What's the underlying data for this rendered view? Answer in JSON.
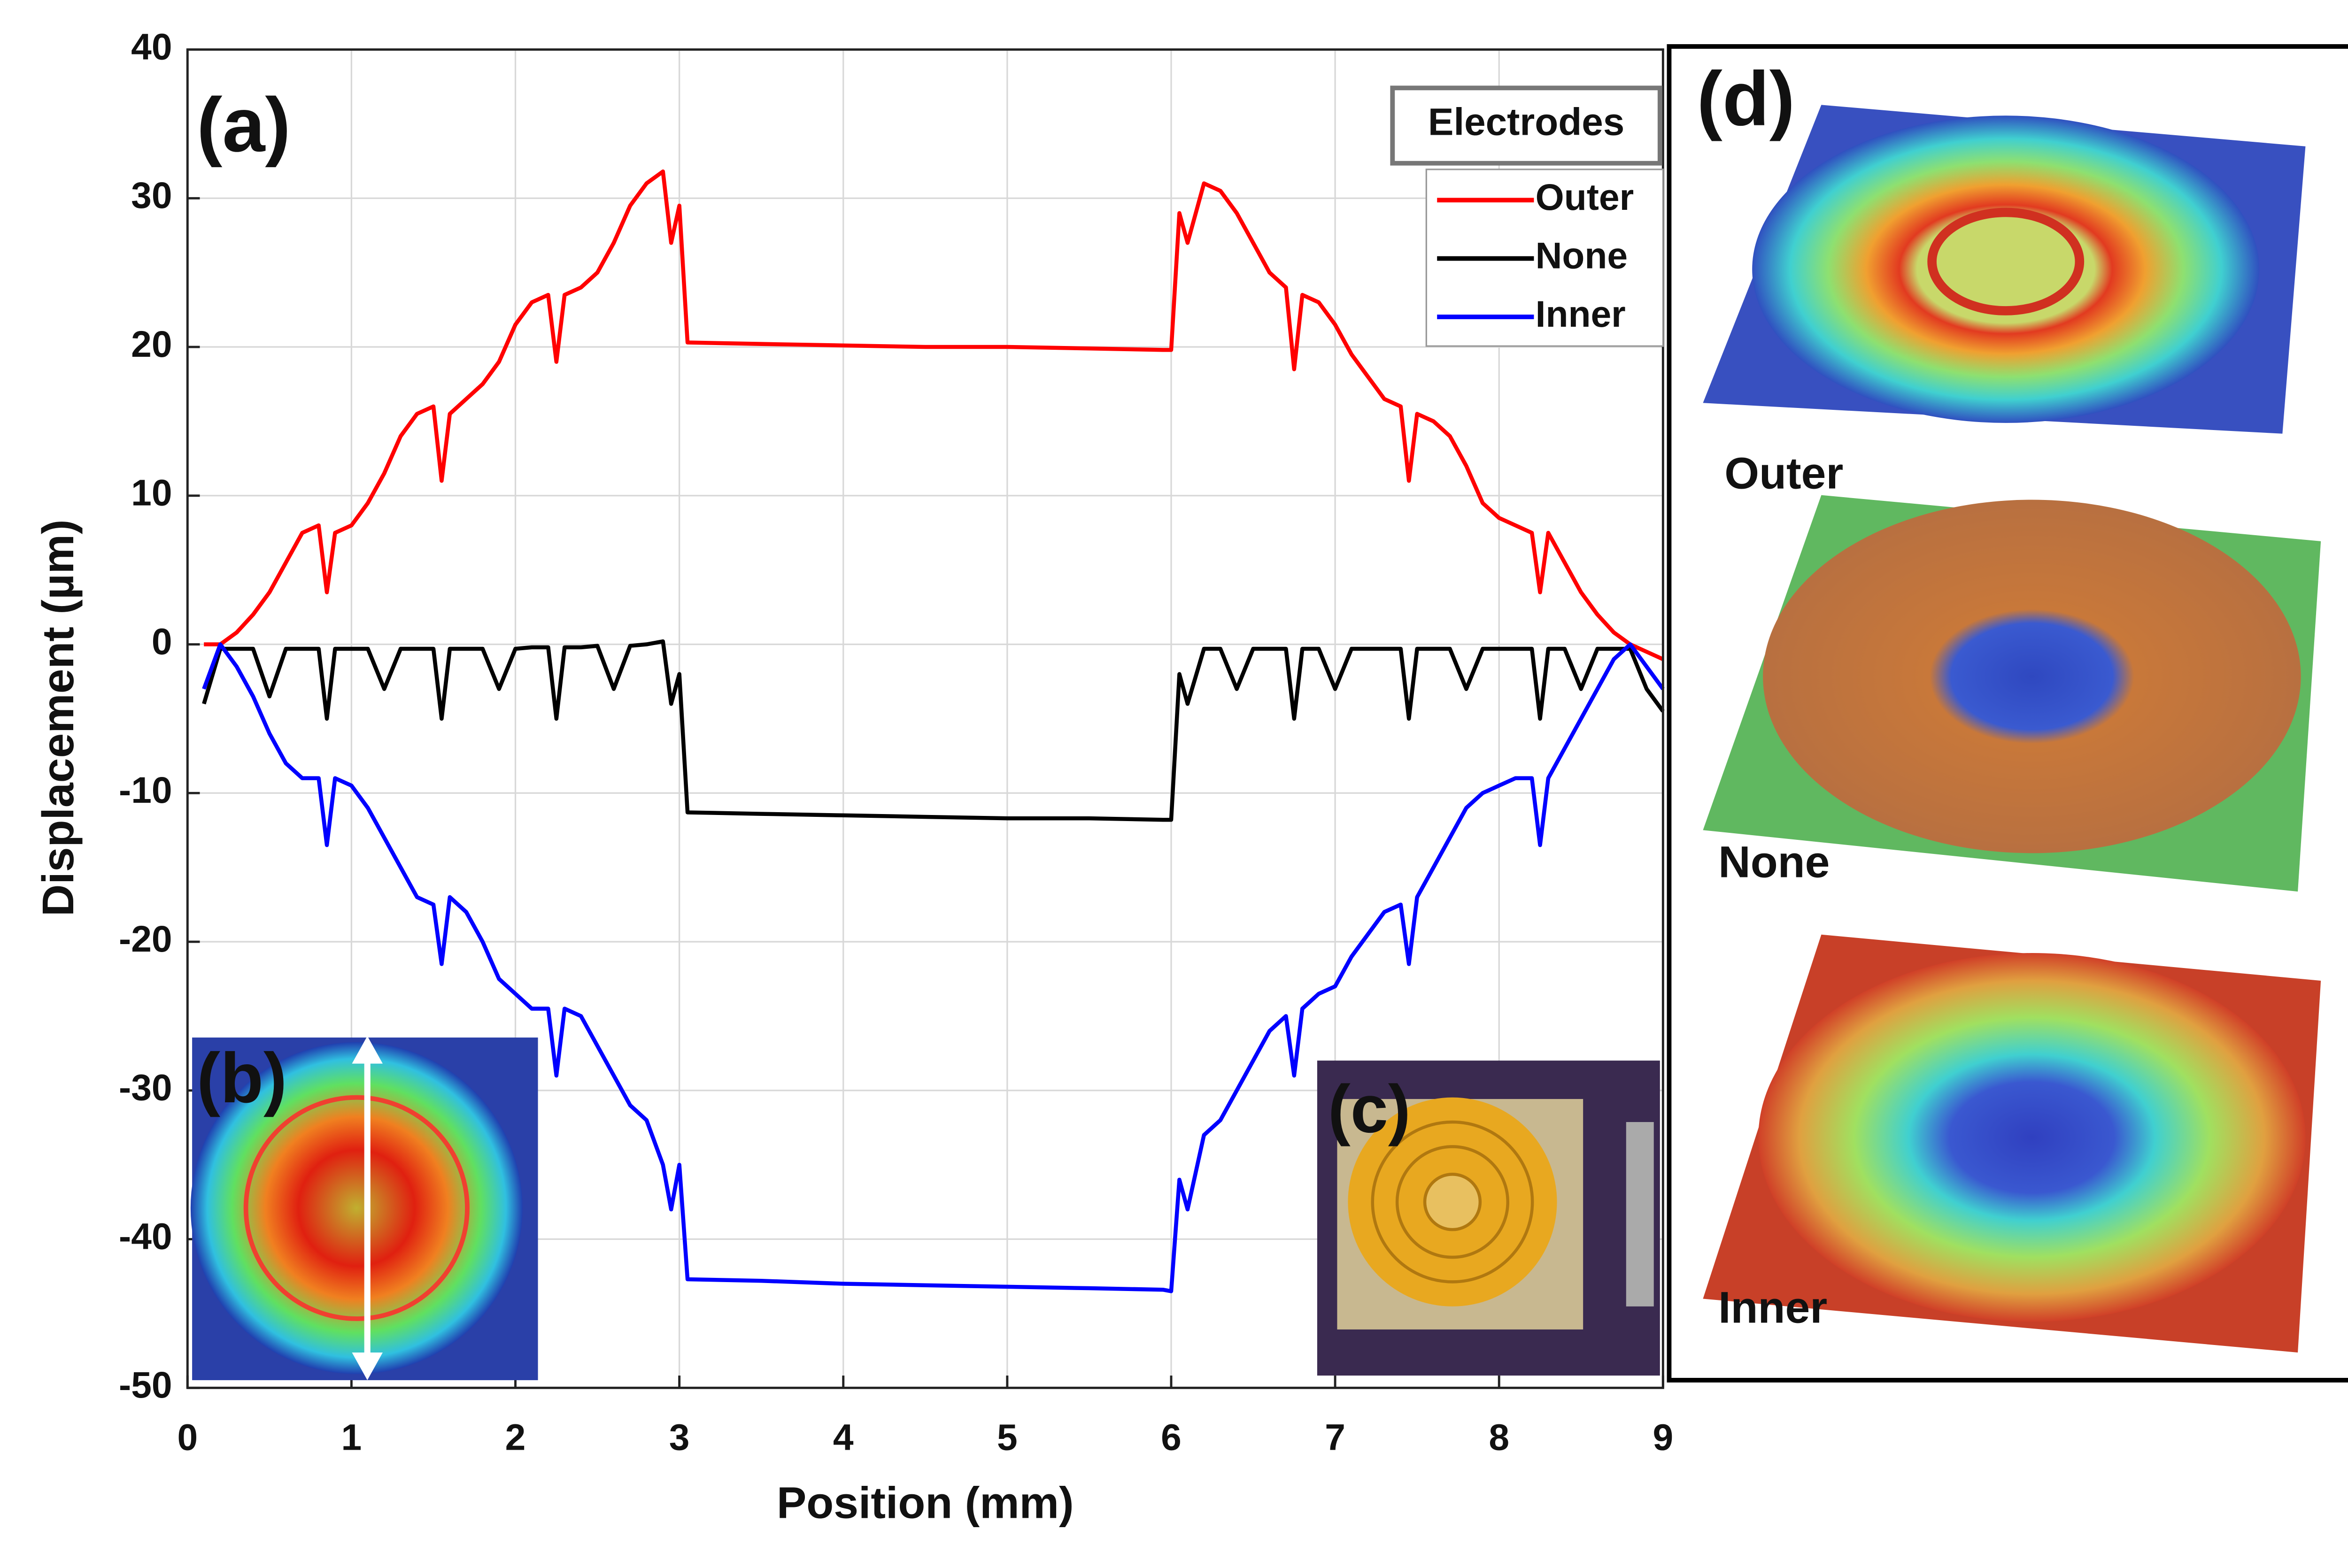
{
  "chart_data": {
    "type": "line",
    "xlabel": "Position (mm)",
    "ylabel": "Displacement (µm)",
    "xlim": [
      0,
      9
    ],
    "ylim": [
      -50,
      40
    ],
    "xticks": [
      0,
      1,
      2,
      3,
      4,
      5,
      6,
      7,
      8,
      9
    ],
    "yticks": [
      -50,
      -40,
      -30,
      -20,
      -10,
      0,
      10,
      20,
      30,
      40
    ],
    "grid": true,
    "legend_title": "Electrodes",
    "legend": "upper right",
    "panel_labels": [
      "(a)",
      "(b)",
      "(c)",
      "(d)"
    ],
    "inset_labels": [
      "Outer",
      "None",
      "Inner"
    ],
    "x": [
      0.1,
      0.2,
      0.3,
      0.4,
      0.5,
      0.6,
      0.7,
      0.8,
      0.85,
      0.9,
      1.0,
      1.1,
      1.2,
      1.3,
      1.4,
      1.5,
      1.55,
      1.6,
      1.7,
      1.8,
      1.9,
      2.0,
      2.1,
      2.2,
      2.25,
      2.3,
      2.4,
      2.5,
      2.6,
      2.7,
      2.8,
      2.9,
      2.95,
      3.0,
      3.05,
      3.5,
      4.0,
      4.5,
      5.0,
      5.5,
      5.95,
      6.0,
      6.05,
      6.1,
      6.2,
      6.3,
      6.4,
      6.5,
      6.6,
      6.7,
      6.75,
      6.8,
      6.9,
      7.0,
      7.1,
      7.2,
      7.3,
      7.4,
      7.45,
      7.5,
      7.6,
      7.7,
      7.8,
      7.9,
      8.0,
      8.1,
      8.2,
      8.25,
      8.3,
      8.4,
      8.5,
      8.6,
      8.7,
      8.8,
      8.9,
      9.0
    ],
    "series": [
      {
        "name": "Outer",
        "color": "#ff0000",
        "values": [
          0,
          0,
          0.8,
          2,
          3.5,
          5.5,
          7.5,
          8,
          3.5,
          7.5,
          8,
          9.5,
          11.5,
          14,
          15.5,
          16,
          11,
          15.5,
          16.5,
          17.5,
          19,
          21.5,
          23,
          23.5,
          19,
          23.5,
          24,
          25,
          27,
          29.5,
          31,
          31.8,
          27,
          29.5,
          20.3,
          20.2,
          20.1,
          20,
          20,
          19.9,
          19.8,
          19.8,
          29,
          27,
          31,
          30.5,
          29,
          27,
          25,
          24,
          18.5,
          23.5,
          23,
          21.5,
          19.5,
          18,
          16.5,
          16,
          11,
          15.5,
          15,
          14,
          12,
          9.5,
          8.5,
          8,
          7.5,
          3.5,
          7.5,
          5.5,
          3.5,
          2,
          0.8,
          0,
          -0.5,
          -1
        ]
      },
      {
        "name": "None",
        "color": "#000000",
        "values": [
          -4,
          -0.3,
          -0.3,
          -0.3,
          -3.5,
          -0.3,
          -0.3,
          -0.3,
          -5,
          -0.3,
          -0.3,
          -0.3,
          -3,
          -0.3,
          -0.3,
          -0.3,
          -5,
          -0.3,
          -0.3,
          -0.3,
          -3,
          -0.3,
          -0.2,
          -0.2,
          -5,
          -0.2,
          -0.2,
          -0.1,
          -3,
          -0.1,
          0,
          0.2,
          -4,
          -2,
          -11.3,
          -11.4,
          -11.5,
          -11.6,
          -11.7,
          -11.7,
          -11.8,
          -11.8,
          -2,
          -4,
          -0.3,
          -0.3,
          -3,
          -0.3,
          -0.3,
          -0.3,
          -5,
          -0.3,
          -0.3,
          -3,
          -0.3,
          -0.3,
          -0.3,
          -0.3,
          -5,
          -0.3,
          -0.3,
          -0.3,
          -3,
          -0.3,
          -0.3,
          -0.3,
          -0.3,
          -5,
          -0.3,
          -0.3,
          -3,
          -0.3,
          -0.3,
          -0.3,
          -3,
          -4.5
        ]
      },
      {
        "name": "Inner",
        "color": "#0000ff",
        "values": [
          -3,
          0,
          -1.5,
          -3.5,
          -6,
          -8,
          -9,
          -9,
          -13.5,
          -9,
          -9.5,
          -11,
          -13,
          -15,
          -17,
          -17.5,
          -21.5,
          -17,
          -18,
          -20,
          -22.5,
          -23.5,
          -24.5,
          -24.5,
          -29,
          -24.5,
          -25,
          -27,
          -29,
          -31,
          -32,
          -35,
          -38,
          -35,
          -42.7,
          -42.8,
          -43,
          -43.1,
          -43.2,
          -43.3,
          -43.4,
          -43.5,
          -36,
          -38,
          -33,
          -32,
          -30,
          -28,
          -26,
          -25,
          -29,
          -24.5,
          -23.5,
          -23,
          -21,
          -19.5,
          -18,
          -17.5,
          -21.5,
          -17,
          -15,
          -13,
          -11,
          -10,
          -9.5,
          -9,
          -9,
          -13.5,
          -9,
          -7,
          -5,
          -3,
          -1,
          0,
          -1.5,
          -3
        ]
      }
    ]
  }
}
